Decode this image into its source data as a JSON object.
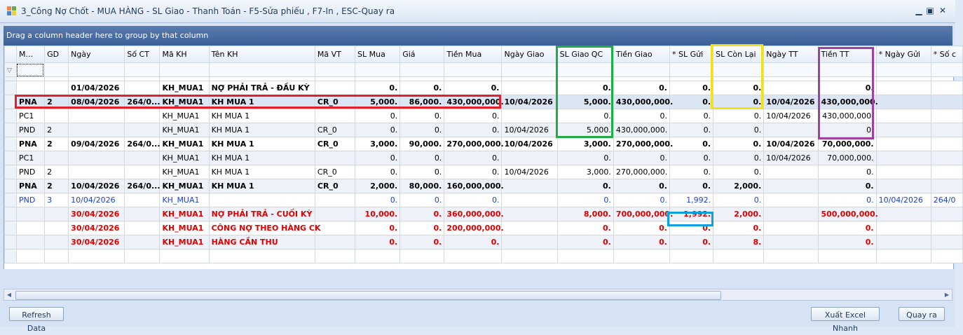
{
  "window": {
    "title": "3_Công Nợ Chốt - MUA HÀNG - SL Giao - Thanh Toán - F5-Sửa phiếu , F7-In , ESC-Quay ra"
  },
  "groupbar": {
    "text": "Drag a column header here to group by that column"
  },
  "columns": [
    "M...",
    "GD",
    "Ngày",
    "Số CT",
    "Mã KH",
    "Tên KH",
    "Mã VT",
    "SL Mua",
    "Giá",
    "Tiền Mua",
    "Ngày Giao",
    "SL Giao QC",
    "Tiền Giao",
    "* SL Gửi",
    "SL Còn Lại",
    "Ngày TT",
    "Tiền TT",
    "* Ngày Gửi",
    "* Số c"
  ],
  "rows": [
    {
      "style": "bold ind",
      "cells": [
        "",
        "",
        "01/04/2026",
        "",
        "KH_MUA1",
        "NỢ PHẢI TRẢ - ĐẦU KỲ",
        "",
        "0.",
        "0.",
        "0.",
        "",
        "0.",
        "0.",
        "0.",
        "0.",
        "",
        "0.",
        "",
        ""
      ]
    },
    {
      "style": "bold sel",
      "cells": [
        "PNA",
        "2",
        "08/04/2026",
        "264/0...",
        "KH_MUA1",
        "KH MUA 1",
        "CR_0",
        "5,000.",
        "86,000.",
        "430,000,000.",
        "10/04/2026",
        "5,000.",
        "430,000,000.",
        "0.",
        "0.",
        "10/04/2026",
        "430,000,000.",
        "",
        ""
      ]
    },
    {
      "style": "ind",
      "cells": [
        "PC1",
        "",
        "",
        "",
        "KH_MUA1",
        "KH MUA 1",
        "",
        "0.",
        "0.",
        "0.",
        "",
        "0.",
        "0.",
        "0.",
        "0.",
        "10/04/2026",
        "430,000,000.",
        "",
        ""
      ]
    },
    {
      "style": "alt",
      "cells": [
        "PND",
        "2",
        "",
        "",
        "KH_MUA1",
        "KH MUA 1",
        "CR_0",
        "0.",
        "0.",
        "0.",
        "10/04/2026",
        "5,000.",
        "430,000,000.",
        "0.",
        "0.",
        "",
        "0.",
        "",
        ""
      ]
    },
    {
      "style": "bold ind",
      "cells": [
        "PNA",
        "2",
        "09/04/2026",
        "264/0...",
        "KH_MUA1",
        "KH MUA 1",
        "CR_0",
        "3,000.",
        "90,000.",
        "270,000,000.",
        "10/04/2026",
        "3,000.",
        "270,000,000.",
        "0.",
        "0.",
        "10/04/2026",
        "70,000,000.",
        "",
        ""
      ]
    },
    {
      "style": "alt",
      "cells": [
        "PC1",
        "",
        "",
        "",
        "KH_MUA1",
        "KH MUA 1",
        "",
        "0.",
        "0.",
        "0.",
        "",
        "0.",
        "0.",
        "0.",
        "0.",
        "10/04/2026",
        "70,000,000.",
        "",
        ""
      ]
    },
    {
      "style": "ind",
      "cells": [
        "PND",
        "2",
        "",
        "",
        "KH_MUA1",
        "KH MUA 1",
        "CR_0",
        "0.",
        "0.",
        "0.",
        "10/04/2026",
        "3,000.",
        "270,000,000.",
        "0.",
        "0.",
        "",
        "0.",
        "",
        ""
      ]
    },
    {
      "style": "bold alt",
      "cells": [
        "PNA",
        "2",
        "10/04/2026",
        "264/0...",
        "KH_MUA1",
        "KH MUA 1",
        "CR_0",
        "2,000.",
        "80,000.",
        "160,000,000.",
        "",
        "0.",
        "0.",
        "0.",
        "2,000.",
        "",
        "0.",
        "",
        ""
      ]
    },
    {
      "style": "blue ind",
      "cells": [
        "PND",
        "3",
        "10/04/2026",
        "",
        "KH_MUA1",
        "",
        "",
        "0.",
        "0.",
        "0.",
        "",
        "0.",
        "0.",
        "1,992.",
        "0.",
        "",
        "0.",
        "10/04/2026",
        "264/0"
      ]
    },
    {
      "style": "red alt",
      "cells": [
        "",
        "",
        "30/04/2026",
        "",
        "KH_MUA1",
        "NỢ PHẢI TRẢ - CUỐI KỲ",
        "",
        "10,000.",
        "0.",
        "360,000,000.",
        "",
        "8,000.",
        "700,000,000.",
        "1,992.",
        "2,000.",
        "",
        "500,000,000.",
        "",
        ""
      ]
    },
    {
      "style": "red ind",
      "cells": [
        "",
        "",
        "30/04/2026",
        "",
        "KH_MUA1",
        "CÔNG NỢ THEO HÀNG CK",
        "",
        "0.",
        "0.",
        "200,000,000.",
        "",
        "0.",
        "0.",
        "0.",
        "0.",
        "",
        "0.",
        "",
        ""
      ]
    },
    {
      "style": "red alt",
      "cells": [
        "",
        "",
        "30/04/2026",
        "",
        "KH_MUA1",
        "HÀNG CẦN THU",
        "",
        "0.",
        "0.",
        "0.",
        "",
        "0.",
        "0.",
        "0.",
        "8.",
        "",
        "0.",
        "",
        ""
      ]
    }
  ],
  "buttons": {
    "refresh": "Refresh Data",
    "export": "Xuất Excel Nhanh",
    "exit": "Quay ra"
  }
}
